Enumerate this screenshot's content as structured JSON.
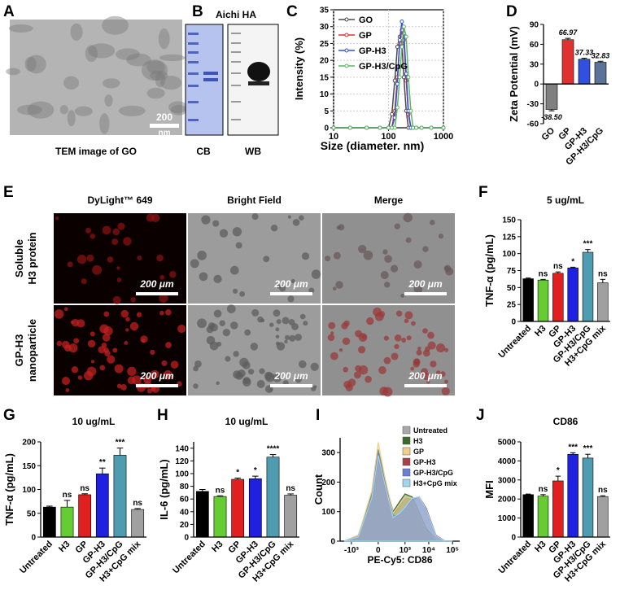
{
  "panel_labels": [
    "A",
    "B",
    "C",
    "D",
    "E",
    "F",
    "G",
    "H",
    "I",
    "J"
  ],
  "panel_a": {
    "scale_value": "200",
    "scale_unit": "nm",
    "caption": "TEM image of GO"
  },
  "panel_b": {
    "title": "Aichi HA",
    "lanes": [
      "CB",
      "WB"
    ]
  },
  "panel_e": {
    "columns": [
      "DyLight™ 649",
      "Bright Field",
      "Merge"
    ],
    "rows": [
      [
        "Soluble",
        "H3 protein"
      ],
      [
        "GP-H3",
        "nanoparticle"
      ]
    ],
    "scale_label": "200 μm"
  },
  "chart_data": [
    {
      "type": "line",
      "xlabel": "Size (diameter. nm)",
      "ylabel": "Intensity (%)",
      "x": [
        10,
        20,
        40,
        70,
        100,
        115,
        130,
        145,
        160,
        175,
        190,
        210,
        230,
        255,
        280,
        320,
        400,
        600,
        1000
      ],
      "xscale": "log",
      "xlim": [
        10,
        1000
      ],
      "xticks": [
        10,
        100,
        1000
      ],
      "ylim": [
        0,
        35
      ],
      "yticks": [
        0,
        5,
        10,
        15,
        20,
        25,
        30,
        35
      ],
      "grid": true,
      "legend": "upper left",
      "series": [
        {
          "name": "GO",
          "color": "#4a4a4a",
          "values": [
            0,
            0,
            0,
            0,
            0,
            4,
            14,
            24,
            27,
            25,
            15,
            5,
            0,
            0,
            0,
            0,
            0,
            0,
            0
          ]
        },
        {
          "name": "GP",
          "color": "#e03030",
          "values": [
            0,
            0,
            0,
            0,
            0,
            0,
            5,
            15,
            25,
            29,
            26,
            14,
            4,
            0,
            0,
            0,
            0,
            0,
            0
          ]
        },
        {
          "name": "GP-H3",
          "color": "#3050e0",
          "values": [
            0,
            0,
            0,
            0,
            0,
            0,
            3,
            13,
            26,
            31.5,
            28,
            16,
            5,
            0,
            0,
            0,
            0,
            0,
            0
          ]
        },
        {
          "name": "GP-H3/CpG",
          "color": "#5cb85c",
          "values": [
            0,
            0,
            0,
            0,
            0,
            0,
            0,
            6,
            15,
            24,
            30,
            27,
            15,
            5,
            0,
            0,
            0,
            0,
            0
          ]
        }
      ]
    },
    {
      "type": "bar",
      "ylabel": "Zeta Potential (mV)",
      "categories": [
        "GO",
        "GP",
        "GP-H3",
        "GP-H3/CpG"
      ],
      "values": [
        -38.5,
        66.97,
        37.33,
        32.83
      ],
      "value_labels": [
        "-38.50",
        "66.97",
        "37.33",
        "32.83"
      ],
      "errors": [
        2,
        2,
        1.5,
        1.5
      ],
      "colors": [
        "#808080",
        "#e03030",
        "#3050e0",
        "#5b7396"
      ],
      "ylim": [
        -60,
        90
      ],
      "yticks": [
        -60,
        -30,
        0,
        30,
        60,
        90
      ]
    },
    {
      "type": "bar",
      "title": "5 ug/mL",
      "ylabel": "TNF-α (pg/mL)",
      "categories": [
        "Untreated",
        "H3",
        "GP",
        "GP-H3",
        "GP-H3/CpG",
        "H3+CpG mix"
      ],
      "values": [
        63,
        61,
        71,
        79,
        102,
        57
      ],
      "errors": [
        1,
        1,
        2,
        1,
        4,
        5
      ],
      "significance": [
        null,
        "ns",
        "ns",
        "*",
        "***",
        "ns"
      ],
      "colors": [
        "#000000",
        "#66cc33",
        "#e02020",
        "#2020e0",
        "#4f9bb0",
        "#a0a0a0"
      ],
      "ylim": [
        0,
        150
      ],
      "yticks": [
        0,
        25,
        50,
        75,
        100,
        125,
        150
      ]
    },
    {
      "type": "bar",
      "title": "10 ug/mL",
      "ylabel": "TNF-α (pg/mL)",
      "categories": [
        "Untreated",
        "H3",
        "GP",
        "GP-H3",
        "GP-H3/CpG",
        "H3+CpG mix"
      ],
      "values": [
        63,
        63,
        89,
        133,
        172,
        58
      ],
      "errors": [
        2,
        14,
        2,
        12,
        15,
        2
      ],
      "significance": [
        null,
        "ns",
        "ns",
        "**",
        "***",
        "ns"
      ],
      "colors": [
        "#000000",
        "#66cc33",
        "#e02020",
        "#2020e0",
        "#4f9bb0",
        "#a0a0a0"
      ],
      "ylim": [
        0,
        200
      ],
      "yticks": [
        0,
        50,
        100,
        150,
        200
      ]
    },
    {
      "type": "bar",
      "title": "10 ug/mL",
      "ylabel": "IL-6 (pg/mL)",
      "categories": [
        "Untreated",
        "H3",
        "GP",
        "GP-H3",
        "GP-H3/CpG",
        "H3+CpG mix"
      ],
      "values": [
        72,
        64,
        91,
        92,
        126,
        66
      ],
      "errors": [
        3,
        1,
        2,
        4,
        4,
        2
      ],
      "significance": [
        null,
        "ns",
        "*",
        "*",
        "****",
        "ns"
      ],
      "colors": [
        "#000000",
        "#66cc33",
        "#e02020",
        "#2020e0",
        "#4f9bb0",
        "#a0a0a0"
      ],
      "ylim": [
        0,
        150
      ],
      "yticks": [
        0,
        20,
        40,
        60,
        80,
        100,
        120,
        140
      ]
    },
    {
      "type": "area",
      "xlabel": "PE-Cy5: CD86",
      "ylabel": "Count",
      "x": [
        -2000,
        -500,
        -100,
        0,
        100,
        300,
        600,
        1000,
        2000,
        4000,
        8000,
        20000,
        50000,
        100000
      ],
      "xscale": "biexponential",
      "xlim": [
        -3000,
        200000
      ],
      "xticks": [
        {
          "value": -1000,
          "label": "-10³"
        },
        0,
        {
          "value": 1000,
          "label": "10³"
        },
        {
          "value": 10000,
          "label": "10⁴"
        },
        {
          "value": 100000,
          "label": "10⁵"
        }
      ],
      "ylim": [
        0,
        350
      ],
      "yticks": [
        0,
        100,
        200,
        300
      ],
      "legend": "upper right",
      "series": [
        {
          "name": "Untreated",
          "color": "#a8a8a8",
          "values": [
            0,
            20,
            150,
            300,
            200,
            90,
            120,
            150,
            140,
            90,
            40,
            5,
            0,
            0
          ]
        },
        {
          "name": "H3",
          "color": "#3a6b2a",
          "values": [
            0,
            20,
            160,
            310,
            210,
            100,
            135,
            160,
            150,
            95,
            40,
            5,
            0,
            0
          ]
        },
        {
          "name": "GP",
          "color": "#f2cf86",
          "values": [
            0,
            20,
            170,
            335,
            220,
            95,
            125,
            150,
            145,
            90,
            35,
            5,
            0,
            0
          ]
        },
        {
          "name": "GP-H3",
          "color": "#a8404a",
          "values": [
            0,
            15,
            140,
            280,
            190,
            80,
            90,
            110,
            140,
            150,
            110,
            20,
            0,
            0
          ]
        },
        {
          "name": "GP-H3/CpG",
          "color": "#6b7fd6",
          "values": [
            0,
            15,
            150,
            300,
            200,
            85,
            90,
            110,
            145,
            150,
            100,
            15,
            0,
            0
          ]
        },
        {
          "name": "H3+CpG mix",
          "color": "#9fd8ec",
          "values": [
            0,
            15,
            145,
            290,
            195,
            80,
            95,
            115,
            145,
            150,
            105,
            18,
            0,
            0
          ]
        }
      ]
    },
    {
      "type": "bar",
      "title": "CD86",
      "ylabel": "MFI",
      "categories": [
        "Untreated",
        "H3",
        "GP",
        "GP-H3",
        "GP-H3/CpG",
        "H3+CpG mix"
      ],
      "values": [
        2230,
        2150,
        2950,
        4350,
        4150,
        2130
      ],
      "errors": [
        30,
        80,
        250,
        80,
        200,
        40
      ],
      "significance": [
        null,
        "ns",
        "*",
        "***",
        "***",
        "ns"
      ],
      "colors": [
        "#000000",
        "#66cc33",
        "#e02020",
        "#2020e0",
        "#4f9bb0",
        "#a0a0a0"
      ],
      "ylim": [
        0,
        5000
      ],
      "yticks": [
        0,
        1000,
        2000,
        3000,
        4000,
        5000
      ]
    }
  ]
}
